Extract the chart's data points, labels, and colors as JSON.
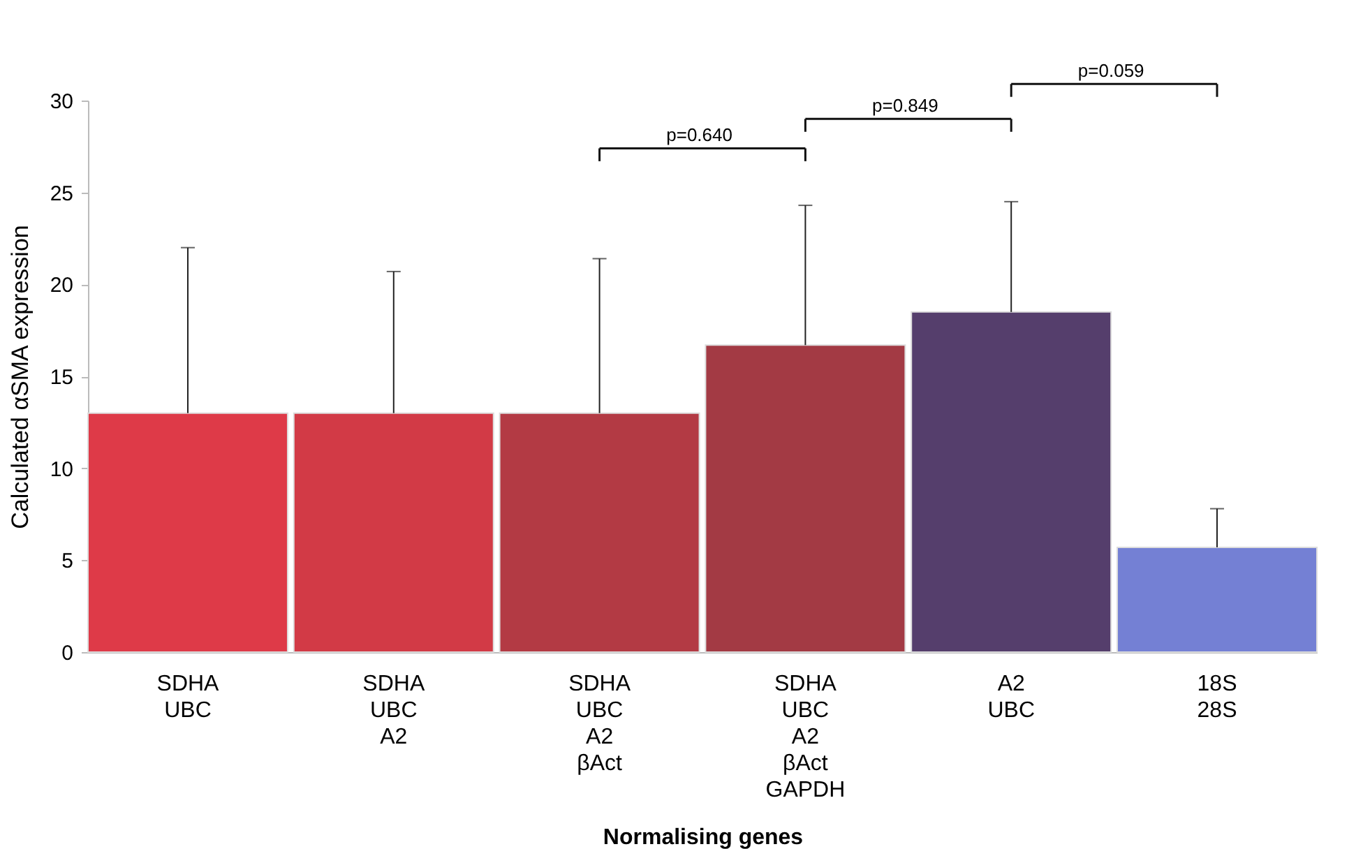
{
  "chart_data": {
    "type": "bar",
    "xlabel": "Normalising genes",
    "ylabel": "Calculated αSMA expression",
    "categories": [
      "SDHA\nUBC",
      "SDHA\nUBC\nA2",
      "SDHA\nUBC\nA2\nβAct",
      "SDHA\nUBC\nA2\nβAct\nGAPDH",
      "A2\nUBC",
      "18S\n28S"
    ],
    "values": [
      13.0,
      13.0,
      13.0,
      16.7,
      18.5,
      5.7
    ],
    "colors": [
      "#de3a48",
      "#d23a46",
      "#b33a44",
      "#a33a44",
      "#553e6c",
      "#7480d4"
    ],
    "errors": [
      [
        13.0,
        22.0
      ],
      [
        13.0,
        20.7
      ],
      [
        13.0,
        21.4
      ],
      [
        16.7,
        24.3
      ],
      [
        18.5,
        24.5
      ],
      [
        5.7,
        7.8
      ]
    ],
    "annotations": [
      "p=0.640",
      "p=0.849",
      "p=0.059"
    ],
    "ylim": [
      0,
      30
    ],
    "yticks": [
      0,
      5,
      10,
      15,
      20,
      25,
      30
    ],
    "grid": false
  }
}
